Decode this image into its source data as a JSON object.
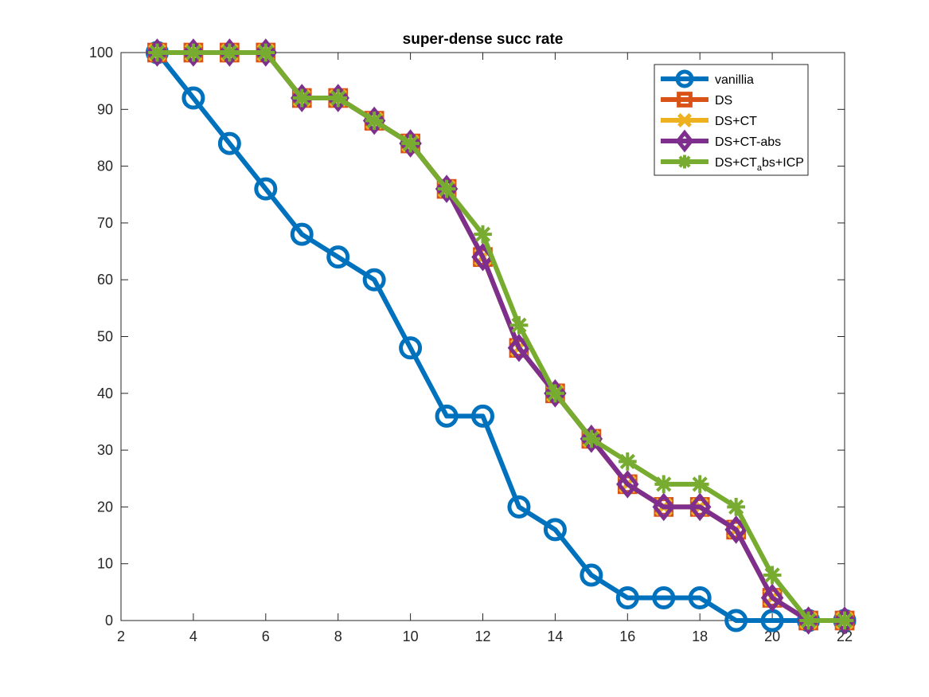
{
  "chart_data": {
    "type": "line",
    "title": "super-dense succ rate",
    "xlabel": "",
    "ylabel": "",
    "xlim": [
      2,
      22
    ],
    "ylim": [
      0,
      100
    ],
    "xticks": [
      2,
      4,
      6,
      8,
      10,
      12,
      14,
      16,
      18,
      20,
      22
    ],
    "yticks": [
      0,
      10,
      20,
      30,
      40,
      50,
      60,
      70,
      80,
      90,
      100
    ],
    "grid": false,
    "legend_position": "top-right",
    "x": [
      3,
      4,
      5,
      6,
      7,
      8,
      9,
      10,
      11,
      12,
      13,
      14,
      15,
      16,
      17,
      18,
      19,
      20,
      21,
      22
    ],
    "series": [
      {
        "name": "vanillia",
        "color": "#0072BD",
        "marker": "circle",
        "values": [
          100,
          92,
          84,
          76,
          68,
          64,
          60,
          48,
          36,
          36,
          20,
          16,
          8,
          4,
          4,
          4,
          0,
          0,
          0,
          0
        ]
      },
      {
        "name": "DS",
        "color": "#D95319",
        "marker": "square",
        "values": [
          100,
          100,
          100,
          100,
          92,
          92,
          88,
          84,
          76,
          64,
          48,
          40,
          32,
          24,
          20,
          20,
          16,
          4,
          0,
          0
        ]
      },
      {
        "name": "DS+CT",
        "color": "#EDB120",
        "marker": "x",
        "values": [
          100,
          100,
          100,
          100,
          92,
          92,
          88,
          84,
          76,
          64,
          48,
          40,
          32,
          24,
          20,
          20,
          16,
          4,
          0,
          0
        ]
      },
      {
        "name": "DS+CT-abs",
        "color": "#7E2F8E",
        "marker": "diamond",
        "values": [
          100,
          100,
          100,
          100,
          92,
          92,
          88,
          84,
          76,
          64,
          48,
          40,
          32,
          24,
          20,
          20,
          16,
          4,
          0,
          0
        ]
      },
      {
        "name": "DS+CT_abs+ICP",
        "legend_main": "DS+CT",
        "legend_sub": "a",
        "legend_rest": "bs+ICP",
        "color": "#77AC30",
        "marker": "asterisk",
        "values": [
          100,
          100,
          100,
          100,
          92,
          92,
          88,
          84,
          76,
          68,
          52,
          40,
          32,
          28,
          24,
          24,
          20,
          8,
          0,
          0
        ]
      }
    ]
  }
}
